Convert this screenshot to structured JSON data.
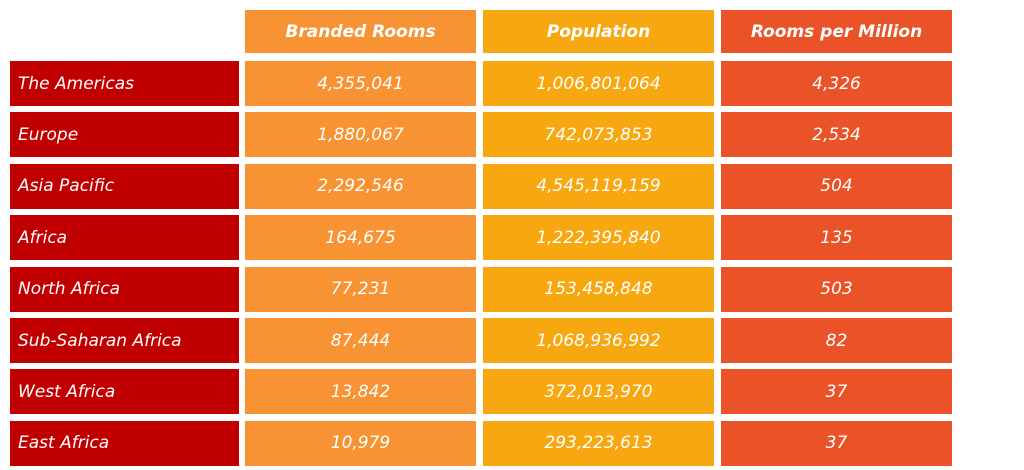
{
  "chart_data": {
    "type": "table",
    "columns": [
      "Branded Rooms",
      "Population",
      "Rooms per Million"
    ],
    "rows": [
      {
        "region": "The Americas",
        "values": [
          "4,355,041",
          "1,006,801,064",
          "4,326"
        ]
      },
      {
        "region": "Europe",
        "values": [
          "1,880,067",
          "742,073,853",
          "2,534"
        ]
      },
      {
        "region": "Asia Pacific",
        "values": [
          "2,292,546",
          "4,545,119,159",
          "504"
        ]
      },
      {
        "region": "Africa",
        "values": [
          "164,675",
          "1,222,395,840",
          "135"
        ]
      },
      {
        "region": "North Africa",
        "values": [
          "77,231",
          "153,458,848",
          "503"
        ]
      },
      {
        "region": "Sub-Saharan Africa",
        "values": [
          "87,444",
          "1,068,936,992",
          "82"
        ]
      },
      {
        "region": "West Africa",
        "values": [
          "13,842",
          "372,013,970",
          "37"
        ]
      },
      {
        "region": "East Africa",
        "values": [
          "10,979",
          "293,223,613",
          "37"
        ]
      }
    ],
    "colors": {
      "label_column": "#c00000",
      "branded_rooms_column": "#f79333",
      "population_column": "#f7a70f",
      "rooms_per_million_column": "#ea5328"
    }
  }
}
